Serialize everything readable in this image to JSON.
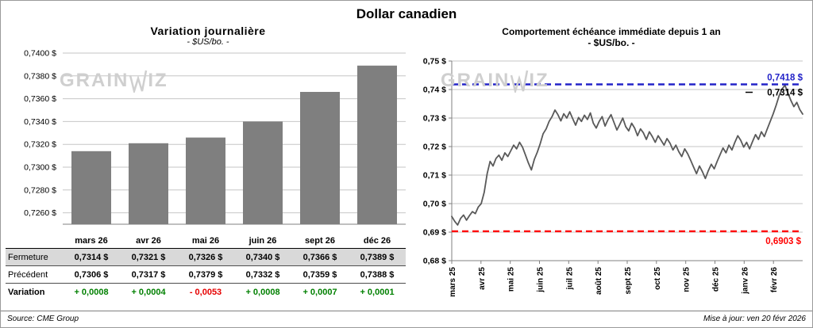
{
  "page": {
    "title": "Dollar canadien",
    "source_note": "Source: CME Group",
    "update_note": "Mise à jour: ven 20 févr 2026",
    "watermark_prefix": "GRAIN",
    "watermark_suffix": "IZ"
  },
  "colors": {
    "bar_fill": "#7f7f7f",
    "series_line": "#595959",
    "high_line_blue": "#2323c8",
    "low_line_red": "#ff0000",
    "positive_green": "#008000",
    "negative_red": "#e60000",
    "gridline_gray": "#c6c6c6",
    "axis_gray": "#808080",
    "table_header_bg": "#d9d9d9",
    "watermark_gray": "#cfcfcf"
  },
  "chart_data": [
    {
      "id": "daily-variation",
      "type": "bar",
      "title": "Variation journalière",
      "subtitle": "- $US/bo. -",
      "categories": [
        "mars 26",
        "avr 26",
        "mai 26",
        "juin 26",
        "sept 26",
        "déc 26"
      ],
      "values": [
        0.7314,
        0.7321,
        0.7326,
        0.734,
        0.7366,
        0.7389
      ],
      "ylim": [
        0.725,
        0.74
      ],
      "yticks": [
        {
          "value": 0.726,
          "label": "0,7260 $"
        },
        {
          "value": 0.728,
          "label": "0,7280 $"
        },
        {
          "value": 0.73,
          "label": "0,7300 $"
        },
        {
          "value": 0.732,
          "label": "0,7320 $"
        },
        {
          "value": 0.734,
          "label": "0,7340 $"
        },
        {
          "value": 0.736,
          "label": "0,7360 $"
        },
        {
          "value": 0.738,
          "label": "0,7380 $"
        },
        {
          "value": 0.74,
          "label": "0,7400 $"
        }
      ],
      "grid": true,
      "legend": false
    },
    {
      "id": "front-month-one-year",
      "type": "line",
      "title": "Comportement échéance immédiate depuis 1 an",
      "subtitle": "- $US/bo. -",
      "ylim": [
        0.68,
        0.75
      ],
      "yticks": [
        {
          "value": 0.68,
          "label": "0,68 $"
        },
        {
          "value": 0.69,
          "label": "0,69 $"
        },
        {
          "value": 0.7,
          "label": "0,70 $"
        },
        {
          "value": 0.71,
          "label": "0,71 $"
        },
        {
          "value": 0.72,
          "label": "0,72 $"
        },
        {
          "value": 0.73,
          "label": "0,73 $"
        },
        {
          "value": 0.74,
          "label": "0,74 $"
        },
        {
          "value": 0.75,
          "label": "0,75 $"
        }
      ],
      "x_labels": [
        "mars 25",
        "avr 25",
        "mai 25",
        "juin 25",
        "juil 25",
        "août 25",
        "sept 25",
        "oct 25",
        "nov 25",
        "déc 25",
        "janv 26",
        "févr 26"
      ],
      "series": [
        0.6955,
        0.6938,
        0.6925,
        0.6948,
        0.696,
        0.6942,
        0.6958,
        0.6972,
        0.6965,
        0.6988,
        0.7,
        0.704,
        0.7105,
        0.7148,
        0.7132,
        0.7158,
        0.717,
        0.7152,
        0.7178,
        0.7165,
        0.7185,
        0.7205,
        0.7192,
        0.7215,
        0.7198,
        0.717,
        0.7142,
        0.7118,
        0.7155,
        0.718,
        0.721,
        0.7245,
        0.7262,
        0.7288,
        0.7305,
        0.7328,
        0.7312,
        0.729,
        0.7315,
        0.73,
        0.7322,
        0.7298,
        0.7275,
        0.7302,
        0.7288,
        0.731,
        0.7295,
        0.7318,
        0.7282,
        0.7265,
        0.7288,
        0.7305,
        0.7272,
        0.7295,
        0.7312,
        0.7285,
        0.7258,
        0.7278,
        0.73,
        0.727,
        0.7255,
        0.7282,
        0.7265,
        0.7238,
        0.7262,
        0.7248,
        0.7225,
        0.7252,
        0.7235,
        0.7215,
        0.7238,
        0.7222,
        0.7205,
        0.7228,
        0.7212,
        0.7188,
        0.7205,
        0.7182,
        0.7165,
        0.7192,
        0.7175,
        0.7152,
        0.7128,
        0.7105,
        0.7132,
        0.7112,
        0.7088,
        0.7115,
        0.7138,
        0.7122,
        0.7148,
        0.7172,
        0.7195,
        0.7178,
        0.7205,
        0.7188,
        0.7215,
        0.7238,
        0.7222,
        0.7198,
        0.7215,
        0.7192,
        0.7218,
        0.7242,
        0.7225,
        0.7252,
        0.7235,
        0.7262,
        0.7288,
        0.7315,
        0.7345,
        0.7378,
        0.7402,
        0.7415,
        0.7388,
        0.7362,
        0.734,
        0.7355,
        0.733,
        0.7314
      ],
      "annotations": {
        "high": {
          "value": 0.7418,
          "label": "0,7418 $"
        },
        "low": {
          "value": 0.6903,
          "label": "0,6903 $"
        },
        "current": {
          "value": 0.7314,
          "label": "0,7314 $"
        }
      },
      "grid": true,
      "legend": false
    },
    {
      "id": "price-table",
      "type": "table",
      "rows": [
        {
          "id": "fermeture",
          "label": "Fermeture",
          "values": [
            "0,7314 $",
            "0,7321 $",
            "0,7326 $",
            "0,7340 $",
            "0,7366 $",
            "0,7389 $"
          ]
        },
        {
          "id": "precedent",
          "label": "Précédent",
          "values": [
            "0,7306 $",
            "0,7317 $",
            "0,7379 $",
            "0,7332 $",
            "0,7359 $",
            "0,7388 $"
          ]
        },
        {
          "id": "variation",
          "label": "Variation",
          "values": [
            "+ 0,0008",
            "+ 0,0004",
            "- 0,0053",
            "+ 0,0008",
            "+ 0,0007",
            "+ 0,0001"
          ],
          "signs": [
            "pos",
            "pos",
            "neg",
            "pos",
            "pos",
            "pos"
          ]
        }
      ]
    }
  ]
}
